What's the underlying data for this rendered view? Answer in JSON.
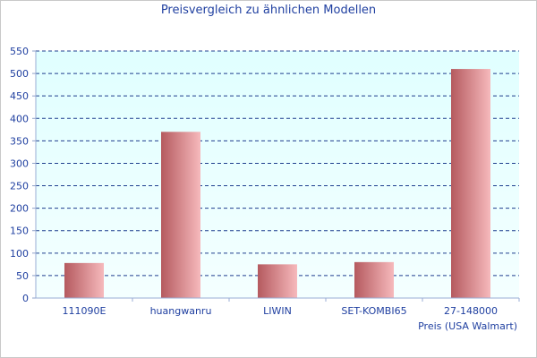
{
  "chart_data": {
    "type": "bar",
    "title": "Preisvergleich zu ähnlichen Modellen",
    "categories": [
      "111090E",
      "huangwanru",
      "LIWIN",
      "SET-KOMBI65",
      "27-148000"
    ],
    "values": [
      78,
      370,
      75,
      80,
      510
    ],
    "xlabel": "Preis (USA Walmart)",
    "ylabel": "",
    "ylim": [
      0,
      550
    ],
    "yticks": [
      0,
      50,
      100,
      150,
      200,
      250,
      300,
      350,
      400,
      450,
      500,
      550
    ],
    "grid": true,
    "legend": "none",
    "colors": {
      "bar_dark": "#b55a5f",
      "bar_light": "#f6b9bc",
      "plot_top": "#e0ffff",
      "plot_bottom": "#f4ffff",
      "grid": "#1f3f8f",
      "text": "#1f3fa0"
    }
  }
}
